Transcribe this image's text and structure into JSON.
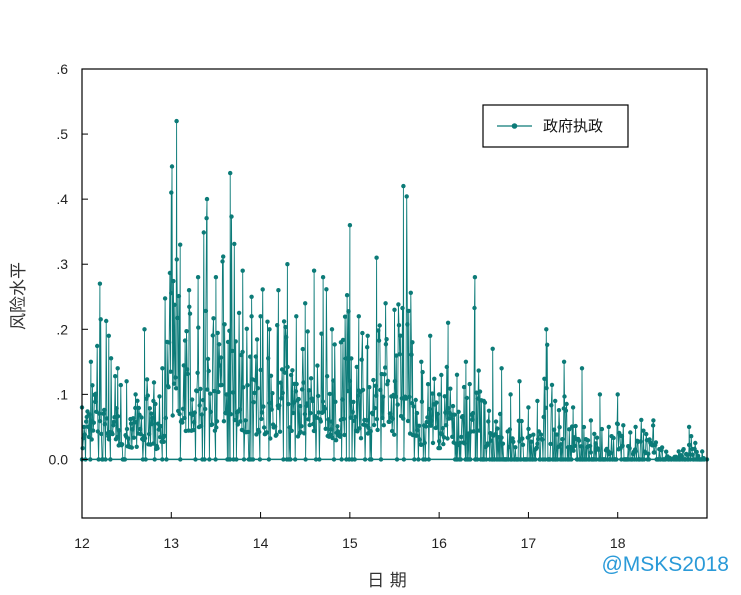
{
  "chart_data": {
    "type": "line",
    "title": "",
    "xlabel": "日 期",
    "ylabel": "风险水平",
    "xlim": [
      12,
      19
    ],
    "ylim": [
      -0.09,
      0.6
    ],
    "x_ticks": [
      "12",
      "13",
      "14",
      "15",
      "16",
      "17",
      "18"
    ],
    "y_ticks": [
      ".6",
      ".5",
      ".4",
      ".3",
      ".2",
      ".1",
      "0.0"
    ],
    "legend": "top-right",
    "series": [
      {
        "name": "政府执政",
        "color": "#0c7b78",
        "x": [
          12.0,
          12.1,
          12.2,
          12.3,
          12.4,
          12.5,
          12.6,
          12.7,
          12.8,
          12.9,
          13.0,
          13.06,
          13.1,
          13.2,
          13.3,
          13.4,
          13.5,
          13.66,
          13.8,
          13.9,
          14.0,
          14.1,
          14.2,
          14.3,
          14.4,
          14.5,
          14.6,
          14.7,
          14.8,
          14.9,
          15.0,
          15.1,
          15.2,
          15.3,
          15.4,
          15.5,
          15.6,
          15.7,
          15.8,
          15.9,
          16.0,
          16.1,
          16.2,
          16.3,
          16.4,
          16.5,
          16.6,
          16.7,
          16.8,
          16.9,
          17.0,
          17.1,
          17.2,
          17.3,
          17.4,
          17.5,
          17.6,
          17.7,
          17.8,
          17.9,
          18.0,
          18.2,
          18.4,
          18.6,
          18.8,
          19.0
        ],
        "y": [
          0.08,
          0.15,
          0.27,
          0.19,
          0.14,
          0.12,
          0.1,
          0.2,
          0.09,
          0.14,
          0.41,
          0.52,
          0.33,
          0.26,
          0.28,
          0.4,
          0.28,
          0.44,
          0.29,
          0.25,
          0.22,
          0.2,
          0.26,
          0.3,
          0.22,
          0.24,
          0.29,
          0.28,
          0.2,
          0.18,
          0.36,
          0.22,
          0.19,
          0.31,
          0.24,
          0.23,
          0.42,
          0.18,
          0.15,
          0.19,
          0.1,
          0.21,
          0.13,
          0.15,
          0.28,
          0.09,
          0.17,
          0.14,
          0.1,
          0.12,
          0.08,
          0.09,
          0.2,
          0.09,
          0.15,
          0.08,
          0.14,
          0.06,
          0.1,
          0.05,
          0.1,
          0.05,
          0.06,
          0.0,
          0.05,
          0.0
        ]
      }
    ]
  },
  "watermark": "@MSKS2018"
}
